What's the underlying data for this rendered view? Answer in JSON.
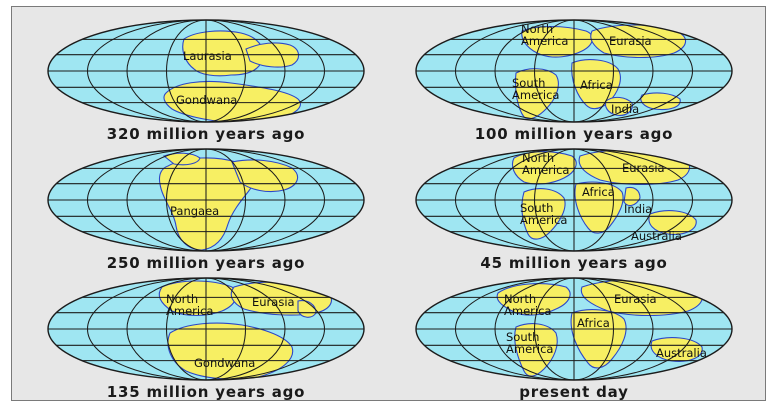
{
  "maps": [
    {
      "caption": "320 million years ago",
      "labels": [
        {
          "key": "laurasia",
          "text": "Laurasia"
        },
        {
          "key": "gondwana",
          "text": "Gondwana"
        }
      ]
    },
    {
      "caption": "100 million years ago",
      "labels": [
        {
          "key": "north-america",
          "text": "North America"
        },
        {
          "key": "eurasia",
          "text": "Eurasia"
        },
        {
          "key": "south-america",
          "text": "South America"
        },
        {
          "key": "africa",
          "text": "Africa"
        },
        {
          "key": "india",
          "text": "India"
        }
      ]
    },
    {
      "caption": "250 million years ago",
      "labels": [
        {
          "key": "pangaea",
          "text": "Pangaea"
        }
      ]
    },
    {
      "caption": "45 million years ago",
      "labels": [
        {
          "key": "north-america",
          "text": "North America"
        },
        {
          "key": "eurasia",
          "text": "Eurasia"
        },
        {
          "key": "africa",
          "text": "Africa"
        },
        {
          "key": "south-america",
          "text": "South America"
        },
        {
          "key": "india",
          "text": "India"
        },
        {
          "key": "australia",
          "text": "Australia"
        }
      ]
    },
    {
      "caption": "135 million years ago",
      "labels": [
        {
          "key": "north-america",
          "text": "North America"
        },
        {
          "key": "eurasia",
          "text": "Eurasia"
        },
        {
          "key": "gondwana",
          "text": "Gondwana"
        }
      ]
    },
    {
      "caption": "present day",
      "labels": [
        {
          "key": "north-america",
          "text": "North America"
        },
        {
          "key": "eurasia",
          "text": "Eurasia"
        },
        {
          "key": "africa",
          "text": "Africa"
        },
        {
          "key": "south-america",
          "text": "South America"
        },
        {
          "key": "australia",
          "text": "Australia"
        }
      ]
    }
  ],
  "colors": {
    "ocean": "#9fe6f2",
    "land": "#f7ef63",
    "gridline": "#1c1c1c",
    "coast": "#2c48c8"
  }
}
